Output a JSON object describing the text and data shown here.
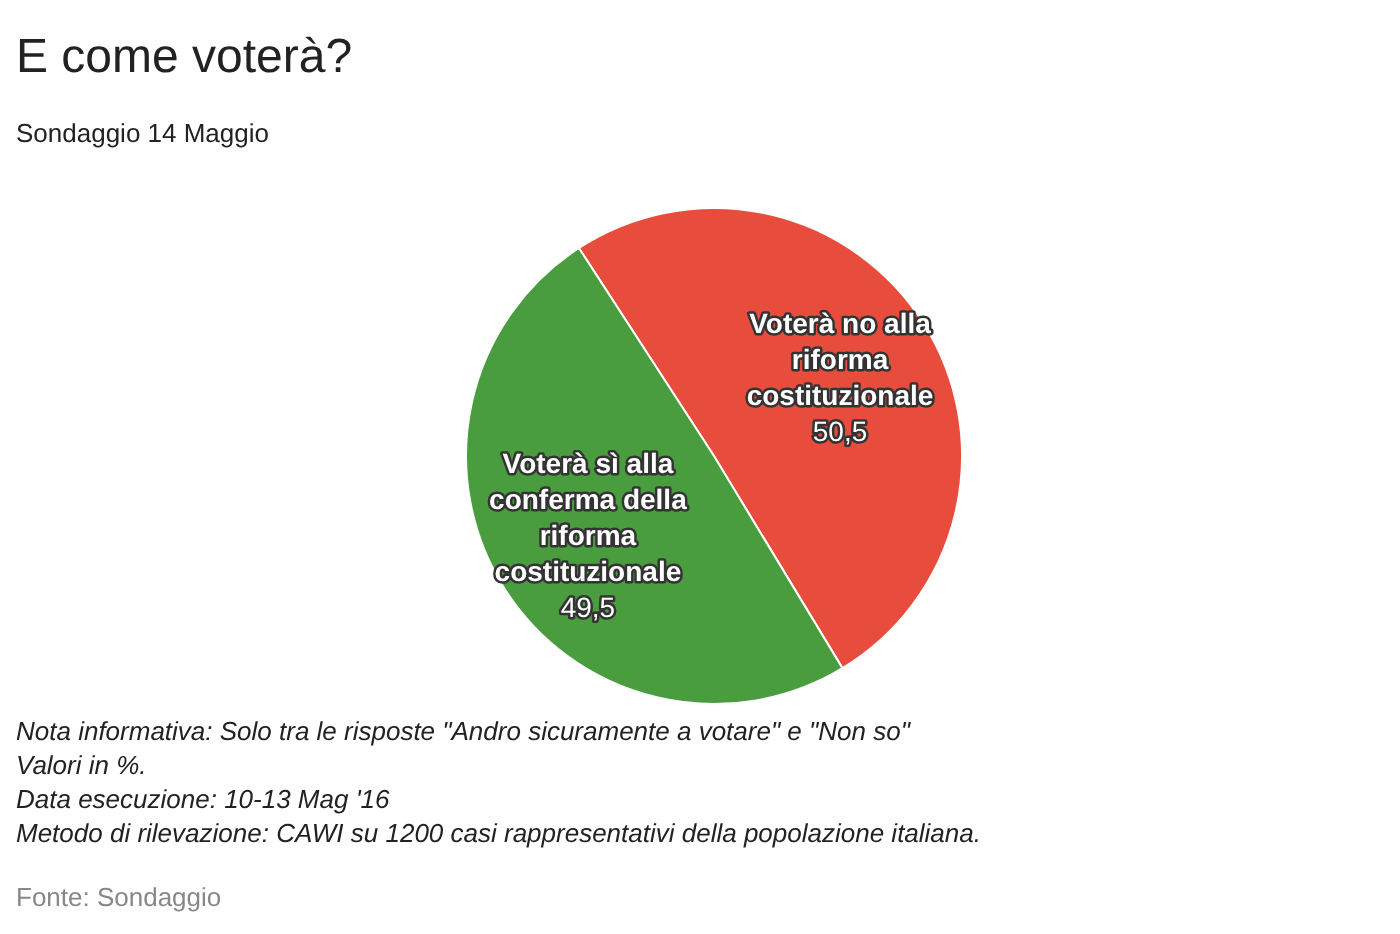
{
  "chart_data": {
    "type": "pie",
    "title": "E come voterà?",
    "subtitle": "Sondaggio 14 Maggio",
    "categories": [
      "Voterà no alla riforma costituzionale",
      "Voterà sì alla conferma della riforma costituzionale"
    ],
    "values": [
      50.5,
      49.5
    ],
    "value_labels": [
      "50,5",
      "49,5"
    ],
    "colors": [
      "#e74c3c",
      "#4a9d3f"
    ],
    "annotations": [
      "Nota informativa: Solo tra le risposte \"Andro sicuramente a votare\" e \"Non so\"",
      "Valori in %.",
      "Data esecuzione: 10-13 Mag '16",
      "Metodo di rilevazione: CAWI su 1200 casi rappresentativi della popolazione italiana.",
      "Fonte: Sondaggio"
    ]
  }
}
